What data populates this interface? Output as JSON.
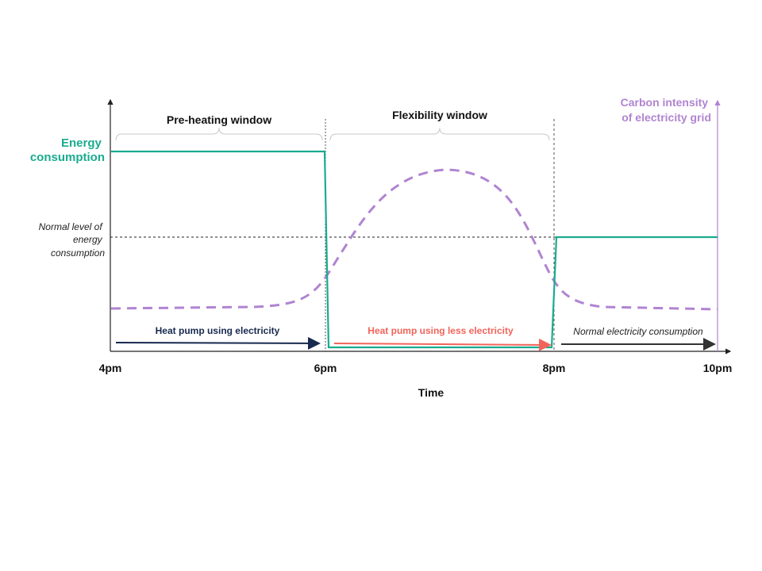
{
  "colors": {
    "energy": "#1aab8f",
    "carbon": "#b084d1",
    "navy": "#17294f",
    "red": "#f2645a",
    "dark": "#333333"
  },
  "labels": {
    "energy_axis": [
      "Energy",
      "consumption"
    ],
    "carbon_axis": [
      "Carbon intensity",
      "of electricity grid"
    ],
    "normal_level": [
      "Normal level of",
      "energy",
      "consumption"
    ],
    "preheat_window": "Pre-heating window",
    "flex_window": "Flexibility window",
    "phase1": "Heat pump using electricity",
    "phase2": "Heat pump using less electricity",
    "phase3": "Normal electricity consumption",
    "x_axis_title": "Time"
  },
  "chart_data": {
    "type": "line",
    "x_ticks": [
      "4pm",
      "6pm",
      "8pm",
      "10pm"
    ],
    "xlabel": "Time",
    "series": [
      {
        "name": "Energy consumption",
        "x": [
          "4pm",
          "6pm",
          "6pm",
          "8pm",
          "8pm",
          "10pm"
        ],
        "values": [
          0.8,
          0.8,
          0.01,
          0.01,
          0.45,
          0.45
        ]
      },
      {
        "name": "Carbon intensity of electricity grid",
        "x": [
          "4pm",
          "5pm",
          "6pm",
          "7pm",
          "8pm",
          "9pm",
          "10pm"
        ],
        "values": [
          0.17,
          0.17,
          0.3,
          0.72,
          0.25,
          0.17,
          0.16
        ]
      }
    ]
  }
}
